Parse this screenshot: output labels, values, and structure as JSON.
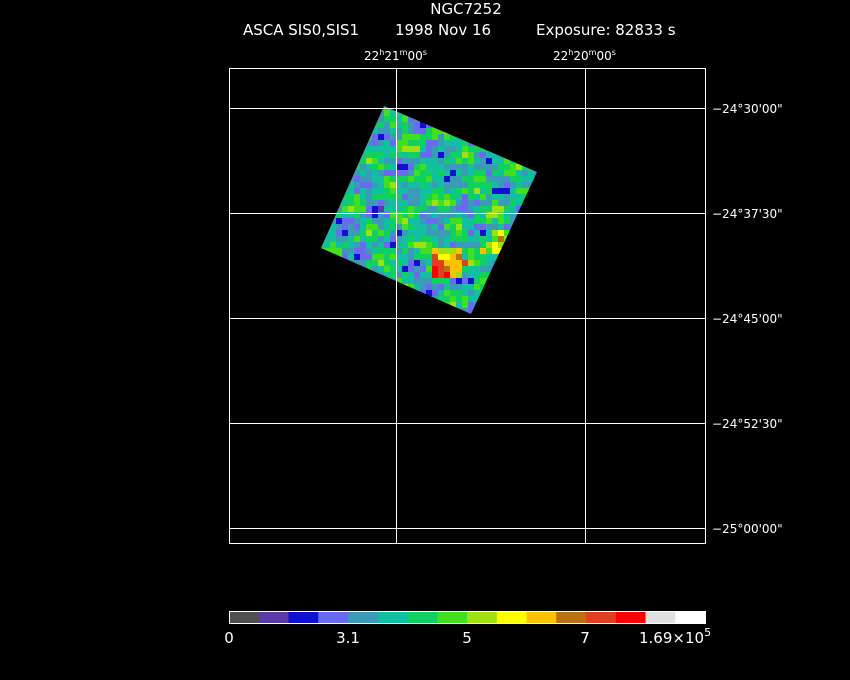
{
  "header": {
    "title": "NGC7252",
    "instrument": "ASCA SIS0,SIS1",
    "date": "1998 Nov 16",
    "exposure": "Exposure: 82833 s"
  },
  "ra_labels": [
    [
      "22",
      "h",
      "21",
      "m",
      "00",
      "s"
    ],
    [
      "22",
      "h",
      "20",
      "m",
      "00",
      "s"
    ]
  ],
  "dec_labels": [
    "−24°30'00\"",
    "−24°37'30\"",
    "−24°45'00\"",
    "−24°52'30\"",
    "−25°00'00\""
  ],
  "colorbar": {
    "colors": [
      "#505050",
      "#5a3aa8",
      "#1010d0",
      "#6a6af0",
      "#3a9ab8",
      "#10c0a0",
      "#10d060",
      "#40e020",
      "#a0e010",
      "#ffff00",
      "#ffc000",
      "#b87010",
      "#e04020",
      "#ff0000",
      "#e0e0e0",
      "#ffffff"
    ],
    "labels": [
      "0",
      "3.1",
      "5",
      "7",
      [
        "1.69×10",
        "5"
      ]
    ]
  }
}
